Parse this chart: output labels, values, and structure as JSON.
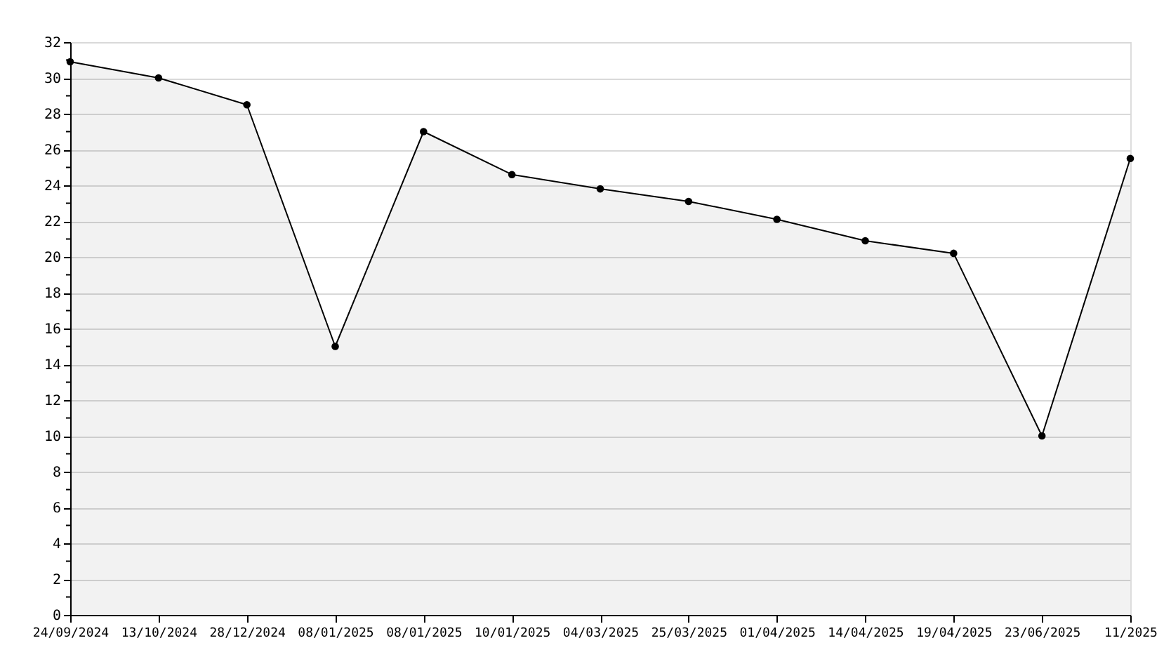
{
  "chart_data": {
    "type": "area",
    "categories": [
      "24/09/2024",
      "13/10/2024",
      "28/12/2024",
      "08/01/2025",
      "08/01/2025",
      "10/01/2025",
      "04/03/2025",
      "25/03/2025",
      "01/04/2025",
      "14/04/2025",
      "19/04/2025",
      "23/06/2025",
      "11/2025"
    ],
    "series": [
      {
        "color": "#000000",
        "values": [
          30.9,
          30.0,
          28.5,
          15.0,
          27.0,
          24.6,
          23.8,
          23.1,
          22.1,
          20.9,
          20.2,
          10.0,
          25.5
        ]
      }
    ],
    "marker": "circle",
    "line_style": "solid",
    "grid": "y",
    "ylim": [
      0,
      32
    ],
    "yticks": [
      0,
      {
        "value": 1,
        "label": null
      },
      2,
      {
        "value": 3,
        "label": null
      },
      4,
      {
        "value": 5,
        "label": null
      },
      6,
      {
        "value": 7,
        "label": null
      },
      8,
      {
        "value": 9,
        "label": null
      },
      10,
      {
        "value": 11,
        "label": null
      },
      12,
      {
        "value": 13,
        "label": null
      },
      14,
      {
        "value": 15,
        "label": null
      },
      16,
      {
        "value": 17,
        "label": null
      },
      18,
      {
        "value": 19,
        "label": null
      },
      20,
      {
        "value": 21,
        "label": null
      },
      22,
      {
        "value": 23,
        "label": null
      },
      24,
      {
        "value": 25,
        "label": null
      },
      26,
      {
        "value": 27,
        "label": null
      },
      28,
      {
        "value": 29,
        "label": null
      },
      30,
      {
        "value": 31,
        "label": null
      },
      32
    ]
  }
}
